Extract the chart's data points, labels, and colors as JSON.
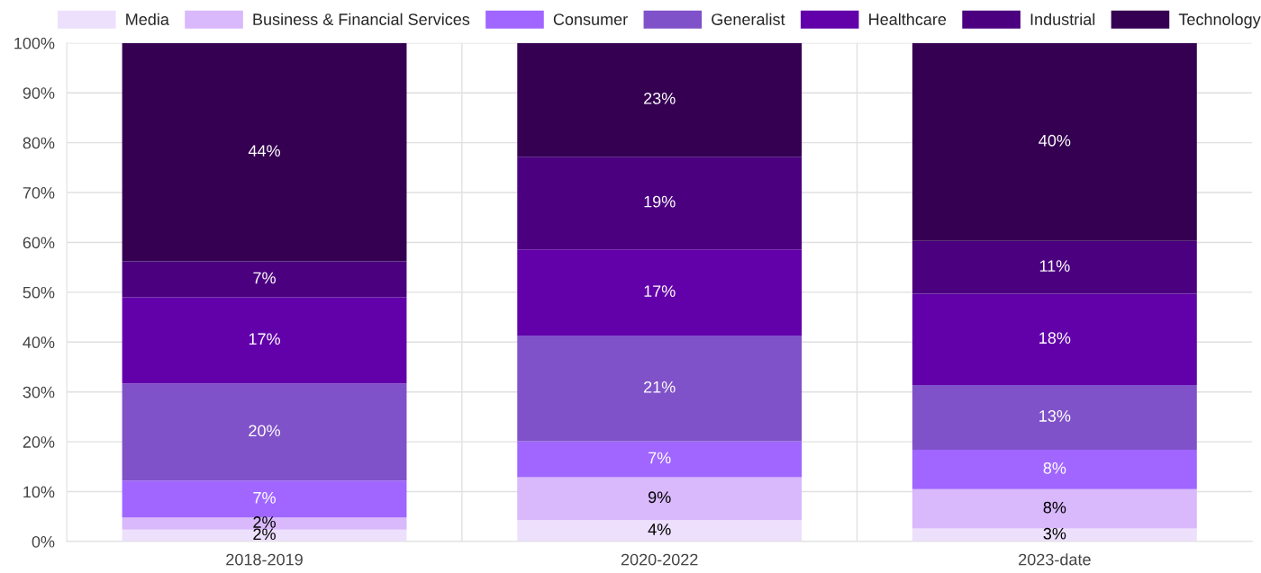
{
  "chart_data": {
    "type": "bar",
    "stacked": true,
    "categories": [
      "2018-2019",
      "2020-2022",
      "2023-date"
    ],
    "series": [
      {
        "name": "Media",
        "color": "#ede0fc",
        "values": [
          2.4,
          4.3,
          2.6
        ],
        "value_labels": [
          "2%",
          "4%",
          "3%"
        ]
      },
      {
        "name": "Business & Financial Services",
        "color": "#d9b8fb",
        "values": [
          2.4,
          8.6,
          7.9
        ],
        "value_labels": [
          "2%",
          "9%",
          "8%"
        ]
      },
      {
        "name": "Consumer",
        "color": "#a066ff",
        "values": [
          7.4,
          7.2,
          7.9
        ],
        "value_labels": [
          "7%",
          "7%",
          "8%"
        ]
      },
      {
        "name": "Generalist",
        "color": "#8052c9",
        "values": [
          19.5,
          21.2,
          13
        ],
        "value_labels": [
          "20%",
          "21%",
          "13%"
        ]
      },
      {
        "name": "Healthcare",
        "color": "#6200aa",
        "values": [
          17.3,
          17.3,
          18.3
        ],
        "value_labels": [
          "17%",
          "17%",
          "18%"
        ]
      },
      {
        "name": "Industrial",
        "color": "#4b0080",
        "values": [
          7.2,
          18.6,
          10.6
        ],
        "value_labels": [
          "7%",
          "19%",
          "11%"
        ]
      },
      {
        "name": "Technology",
        "color": "#350052",
        "values": [
          43.8,
          22.8,
          39.7
        ],
        "value_labels": [
          "44%",
          "23%",
          "40%"
        ]
      }
    ],
    "ylim": [
      0,
      100
    ],
    "yticks": [
      {
        "value": 0,
        "label": "0%"
      },
      {
        "value": 10,
        "label": "10%"
      },
      {
        "value": 20,
        "label": "20%"
      },
      {
        "value": 30,
        "label": "30%"
      },
      {
        "value": 40,
        "label": "40%"
      },
      {
        "value": 50,
        "label": "50%"
      },
      {
        "value": 60,
        "label": "60%"
      },
      {
        "value": 70,
        "label": "70%"
      },
      {
        "value": 80,
        "label": "80%"
      },
      {
        "value": 90,
        "label": "90%"
      },
      {
        "value": 100,
        "label": "100%"
      }
    ],
    "grid": true,
    "legend": "top"
  }
}
